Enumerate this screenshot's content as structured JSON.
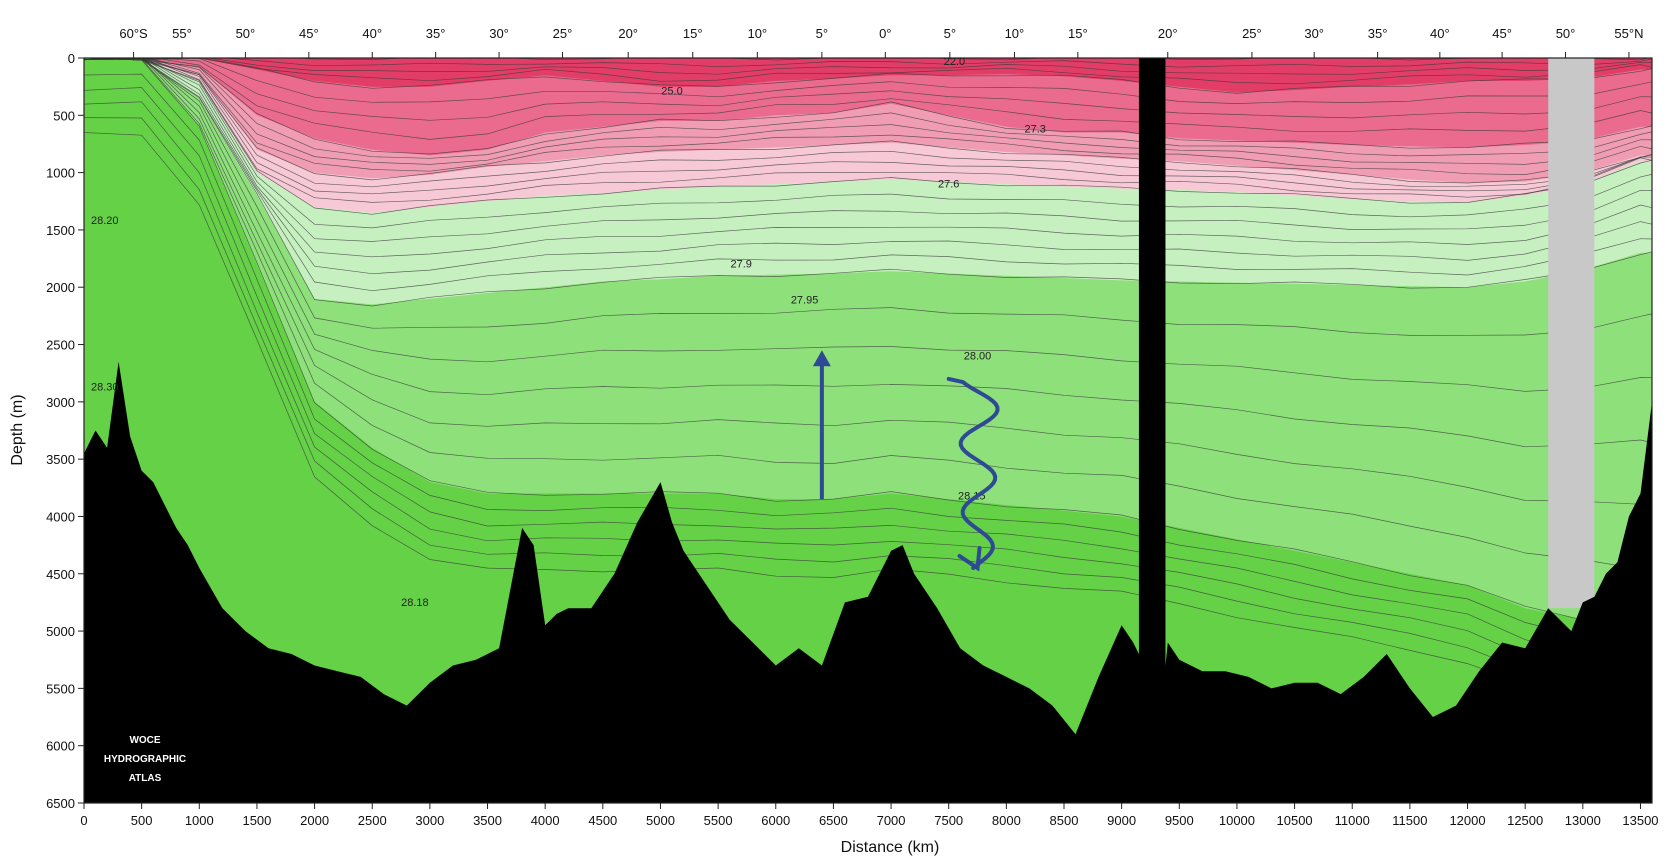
{
  "chart_data": {
    "type": "heatmap",
    "title": "",
    "xlabel": "Distance (km)",
    "ylabel": "Depth (m)",
    "xlim": [
      0,
      13600
    ],
    "ylim": [
      6500,
      0
    ],
    "x_ticks": [
      0,
      500,
      1000,
      1500,
      2000,
      2500,
      3000,
      3500,
      4000,
      4500,
      5000,
      5500,
      6000,
      6500,
      7000,
      7500,
      8000,
      8500,
      9000,
      9500,
      10000,
      10500,
      11000,
      11500,
      12000,
      12500,
      13000,
      13500
    ],
    "y_ticks": [
      0,
      500,
      1000,
      1500,
      2000,
      2500,
      3000,
      3500,
      4000,
      4500,
      5000,
      5500,
      6000,
      6500
    ],
    "latitude_ticks": [
      {
        "label": "60°S",
        "x": 430
      },
      {
        "label": "55°",
        "x": 850
      },
      {
        "label": "50°",
        "x": 1400
      },
      {
        "label": "45°",
        "x": 1950
      },
      {
        "label": "40°",
        "x": 2500
      },
      {
        "label": "35°",
        "x": 3050
      },
      {
        "label": "30°",
        "x": 3600
      },
      {
        "label": "25°",
        "x": 4150
      },
      {
        "label": "20°",
        "x": 4720
      },
      {
        "label": "15°",
        "x": 5280
      },
      {
        "label": "10°",
        "x": 5840
      },
      {
        "label": "5°",
        "x": 6400
      },
      {
        "label": "0°",
        "x": 6950
      },
      {
        "label": "5°",
        "x": 7510
      },
      {
        "label": "10°",
        "x": 8070
      },
      {
        "label": "15°",
        "x": 8620
      },
      {
        "label": "20°",
        "x": 9400
      },
      {
        "label": "25°",
        "x": 10130
      },
      {
        "label": "30°",
        "x": 10670
      },
      {
        "label": "35°",
        "x": 11220
      },
      {
        "label": "40°",
        "x": 11760
      },
      {
        "label": "45°",
        "x": 12300
      },
      {
        "label": "50°",
        "x": 12850
      },
      {
        "label": "55°N",
        "x": 13400
      }
    ],
    "contour_labels": [
      {
        "text": "22.0",
        "x": 7550,
        "y": 60
      },
      {
        "text": "25.0",
        "x": 5100,
        "y": 320
      },
      {
        "text": "27.3",
        "x": 8250,
        "y": 650
      },
      {
        "text": "27.6",
        "x": 7500,
        "y": 1130
      },
      {
        "text": "28.20",
        "x": 180,
        "y": 1450
      },
      {
        "text": "27.9",
        "x": 5700,
        "y": 1830
      },
      {
        "text": "27.95",
        "x": 6250,
        "y": 2140
      },
      {
        "text": "28.00",
        "x": 7750,
        "y": 2630
      },
      {
        "text": "28.30",
        "x": 180,
        "y": 2900
      },
      {
        "text": "28.15",
        "x": 7700,
        "y": 3850
      },
      {
        "text": "28.18",
        "x": 2870,
        "y": 4780
      }
    ],
    "layers": [
      {
        "boundary_depths": [
          0,
          0,
          0,
          0,
          0,
          0,
          0,
          0,
          0,
          0,
          0,
          0,
          0,
          0,
          0,
          0,
          0,
          0,
          0,
          0,
          0,
          0,
          0,
          0,
          0,
          0,
          0,
          0
        ],
        "color": "#e23d67"
      },
      {
        "boundary_depths": [
          0,
          0,
          0,
          100,
          200,
          250,
          250,
          200,
          150,
          200,
          250,
          250,
          200,
          180,
          150,
          150,
          140,
          160,
          200,
          250,
          300,
          280,
          250,
          230,
          200,
          200,
          180,
          100
        ],
        "color": "#ea6b8e"
      },
      {
        "boundary_depths": [
          0,
          0,
          80,
          500,
          700,
          800,
          850,
          800,
          650,
          600,
          550,
          550,
          500,
          480,
          400,
          500,
          600,
          650,
          650,
          700,
          720,
          740,
          760,
          770,
          780,
          760,
          720,
          600
        ],
        "color": "#f09db4"
      },
      {
        "boundary_depths": [
          0,
          0,
          150,
          800,
          1000,
          1050,
          1020,
          950,
          900,
          850,
          820,
          800,
          780,
          760,
          740,
          780,
          820,
          850,
          880,
          900,
          940,
          980,
          1020,
          1060,
          1090,
          1080,
          1000,
          850
        ],
        "color": "#f7c9d6"
      },
      {
        "boundary_depths": [
          0,
          0,
          200,
          1000,
          1300,
          1350,
          1300,
          1250,
          1200,
          1180,
          1150,
          1120,
          1100,
          1080,
          1060,
          1080,
          1100,
          1120,
          1140,
          1150,
          1170,
          1200,
          1230,
          1250,
          1260,
          1200,
          1100,
          900
        ],
        "color": "#c7f0c1"
      },
      {
        "boundary_depths": [
          0,
          0,
          350,
          1200,
          2100,
          2150,
          2100,
          2050,
          2000,
          1950,
          1930,
          1900,
          1890,
          1880,
          1860,
          1880,
          1900,
          1920,
          1940,
          1950,
          1960,
          1970,
          1980,
          1990,
          2000,
          1950,
          1850,
          1700
        ],
        "color": "#8ee07a"
      },
      {
        "boundary_depths": [
          0,
          0,
          600,
          1800,
          3000,
          3400,
          3700,
          3800,
          3800,
          3800,
          3800,
          3800,
          3850,
          3850,
          3800,
          3850,
          3900,
          3950,
          4000,
          4100,
          4200,
          4300,
          4400,
          4500,
          4600,
          4800,
          4900,
          5000
        ],
        "color": "#64d147"
      }
    ],
    "arrows": [
      {
        "type": "upward-flow",
        "from": [
          6400,
          3850
        ],
        "to": [
          6400,
          2550
        ],
        "color": "#2f4a94"
      },
      {
        "type": "downward-mixing",
        "from": [
          7500,
          2800
        ],
        "to": [
          7750,
          4450
        ],
        "color": "#2f4a94"
      }
    ],
    "land_gap": {
      "x": [
        9150,
        9380
      ],
      "color": "#000000"
    },
    "no_data_gap": {
      "x": [
        12700,
        13100
      ],
      "depth": [
        0,
        4800
      ],
      "color": "#c8c8c8"
    },
    "bathymetry": {
      "x": [
        0,
        100,
        200,
        300,
        400,
        500,
        600,
        700,
        800,
        900,
        1000,
        1200,
        1400,
        1600,
        1800,
        2000,
        2200,
        2400,
        2600,
        2800,
        3000,
        3200,
        3400,
        3600,
        3800,
        3900,
        4000,
        4100,
        4200,
        4400,
        4600,
        4800,
        5000,
        5100,
        5200,
        5400,
        5500,
        5600,
        5800,
        6000,
        6200,
        6400,
        6600,
        6800,
        7000,
        7100,
        7200,
        7400,
        7600,
        7800,
        8000,
        8200,
        8400,
        8600,
        8800,
        9000,
        9100,
        9150,
        9380,
        9400,
        9500,
        9700,
        9900,
        10100,
        10300,
        10500,
        10700,
        10900,
        11100,
        11300,
        11500,
        11700,
        11900,
        12100,
        12300,
        12500,
        12700,
        12900,
        13000,
        13100,
        13200,
        13300,
        13400,
        13500,
        13600
      ],
      "depth": [
        3450,
        3250,
        3400,
        2650,
        3300,
        3600,
        3700,
        3900,
        4100,
        4250,
        4450,
        4800,
        5000,
        5150,
        5200,
        5300,
        5350,
        5400,
        5550,
        5650,
        5450,
        5300,
        5250,
        5150,
        4100,
        4250,
        4950,
        4850,
        4800,
        4800,
        4500,
        4050,
        3700,
        4050,
        4300,
        4600,
        4750,
        4900,
        5100,
        5300,
        5150,
        5300,
        4750,
        4700,
        4300,
        4250,
        4500,
        4800,
        5150,
        5300,
        5400,
        5500,
        5650,
        5900,
        5400,
        4950,
        5100,
        5200,
        5300,
        5100,
        5250,
        5350,
        5350,
        5400,
        5500,
        5450,
        5450,
        5550,
        5400,
        5200,
        5500,
        5750,
        5650,
        5350,
        5100,
        5150,
        4800,
        5000,
        4750,
        4700,
        4500,
        4400,
        4000,
        3800,
        3000
      ]
    }
  },
  "logo": {
    "line1": "WOCE",
    "line2": "HYDROGRAPHIC",
    "line3": "ATLAS"
  }
}
